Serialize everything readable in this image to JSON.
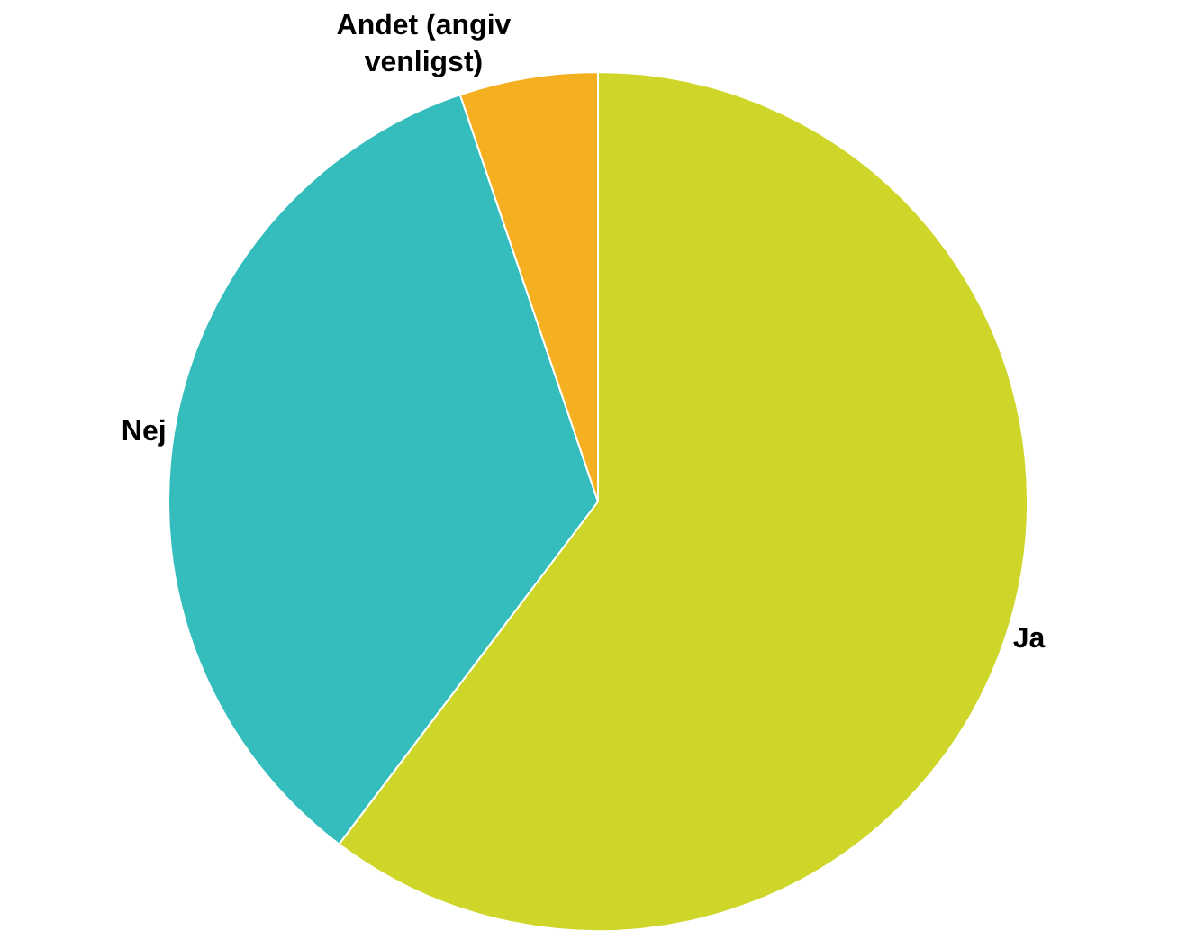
{
  "chart_data": {
    "type": "pie",
    "categories": [
      "Ja",
      "Nej",
      "Andet (angiv venligst)"
    ],
    "values": [
      60.3,
      34.5,
      5.2
    ],
    "colors": [
      "#cfd62a",
      "#35bdbe",
      "#f5b022"
    ],
    "legend": false
  }
}
